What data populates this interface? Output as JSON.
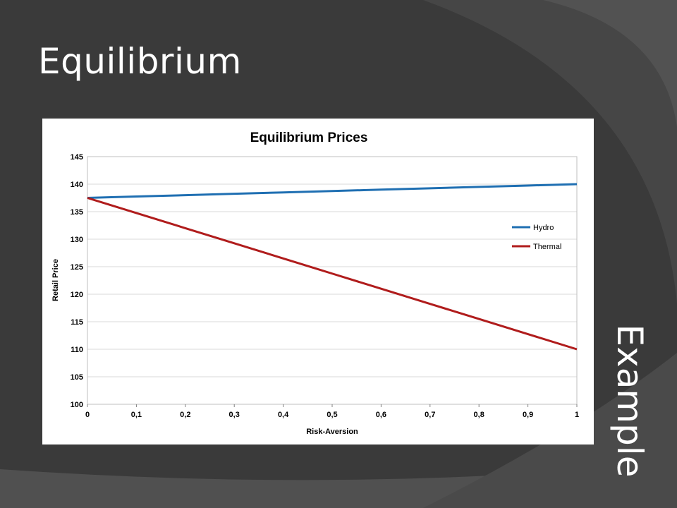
{
  "slide": {
    "title": "Equilibrium",
    "side_label": "Example"
  },
  "colors": {
    "background": "#3a3a3a",
    "hydro": "#1f6fb2",
    "thermal": "#b01c1c",
    "gridline": "#d9d9d9"
  },
  "chart_data": {
    "type": "line",
    "title": "Equilibrium Prices",
    "xlabel": "Risk-Aversion",
    "ylabel": "Retail Price",
    "x": [
      0,
      0.1,
      0.2,
      0.3,
      0.4,
      0.5,
      0.6,
      0.7,
      0.8,
      0.9,
      1
    ],
    "x_tick_labels": [
      "0",
      "0,1",
      "0,2",
      "0,3",
      "0,4",
      "0,5",
      "0,6",
      "0,7",
      "0,8",
      "0,9",
      "1"
    ],
    "y_ticks": [
      100,
      105,
      110,
      115,
      120,
      125,
      130,
      135,
      140,
      145
    ],
    "xlim": [
      0,
      1
    ],
    "ylim": [
      100,
      145
    ],
    "grid": true,
    "legend": "right",
    "series": [
      {
        "name": "Hydro",
        "color": "#1f6fb2",
        "values": [
          137.5,
          137.75,
          138.0,
          138.25,
          138.5,
          138.75,
          139.0,
          139.25,
          139.5,
          139.75,
          140.0
        ]
      },
      {
        "name": "Thermal",
        "color": "#b01c1c",
        "values": [
          137.5,
          134.75,
          132.0,
          129.25,
          126.5,
          123.75,
          121.0,
          118.25,
          115.5,
          112.75,
          110.0
        ]
      }
    ]
  }
}
